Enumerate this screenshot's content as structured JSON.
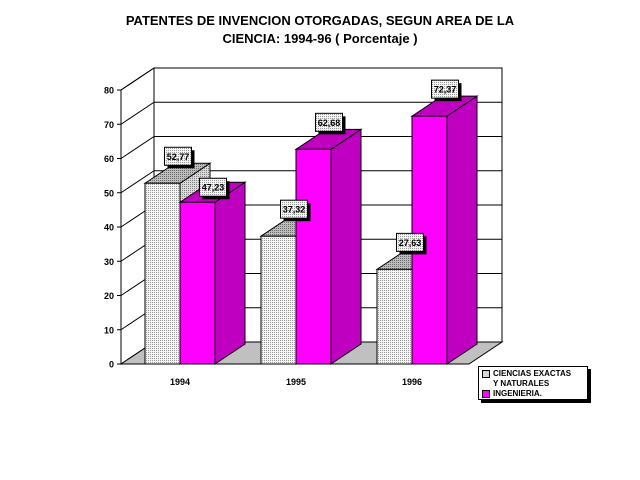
{
  "chart_data": {
    "type": "bar",
    "title_lines": [
      "PATENTES DE INVENCION OTORGADAS, SEGUN AREA DE LA",
      "CIENCIA: 1994-96 ( Porcentaje )"
    ],
    "xlabel": "",
    "ylabel": "",
    "ylim": [
      0,
      80
    ],
    "y_ticks": [
      "0",
      "10",
      "20",
      "30",
      "40",
      "50",
      "60",
      "70",
      "80"
    ],
    "categories": [
      "1994",
      "1995",
      "1996"
    ],
    "series": [
      {
        "name": "CIENCIAS EXACTAS\nY NATURALES",
        "values": [
          52.77,
          37.32,
          27.63
        ],
        "labels": [
          "52,77",
          "37,32",
          "27,63"
        ]
      },
      {
        "name": "INGENIERIA.",
        "values": [
          47.23,
          62.68,
          72.37
        ],
        "labels": [
          "47,23",
          "62,68",
          "72,37"
        ]
      }
    ],
    "grid": true,
    "legend_position": "bottom-right",
    "colors": {
      "series1_front": "#f2f2f2",
      "series2_front": "#ff00ff",
      "series2_side": "#c000c0"
    }
  }
}
